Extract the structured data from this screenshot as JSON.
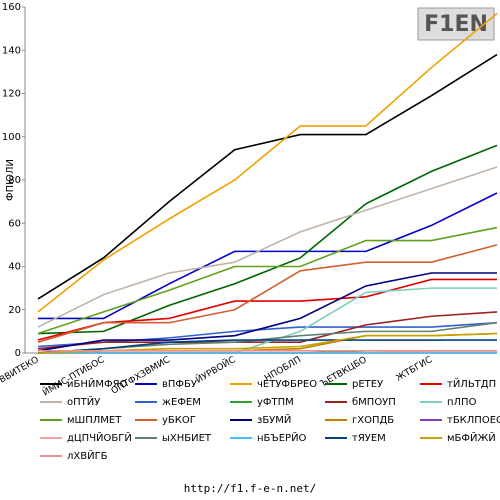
{
  "chart_data": {
    "type": "line",
    "logo": "F1EN",
    "ylabel": "ФПЮЛИ",
    "footer": "http://f1.f-e-n.net/",
    "categories": [
      "ВВИТЕКО",
      "ЙМИС-ПТИБОС",
      "ОПТФХЗВМИС",
      "ЙУРВОЙС",
      "НПОБЛП",
      "ЪЕТВКЦБО",
      "ЖТБГИС",
      null
    ],
    "ylim": [
      0,
      160
    ],
    "yticks": [
      0,
      20,
      40,
      60,
      80,
      100,
      120,
      140,
      160
    ],
    "grid": false,
    "series": [
      {
        "name": "иБНЙМФЯО",
        "color": "#000000",
        "values": [
          25,
          44,
          70,
          94,
          101,
          101,
          119,
          138
        ]
      },
      {
        "name": "вПФБУ",
        "color": "#0000cc",
        "values": [
          16,
          16,
          32,
          47,
          47,
          47,
          59,
          74
        ]
      },
      {
        "name": "чЕТУФБРЕО",
        "color": "#f0a000",
        "values": [
          19,
          43,
          62,
          80,
          105,
          105,
          132,
          157
        ]
      },
      {
        "name": "рЕТЕУ",
        "color": "#006400",
        "values": [
          9,
          10,
          22,
          32,
          44,
          69,
          84,
          96
        ]
      },
      {
        "name": "тЙЛЬТДП",
        "color": "#e00000",
        "values": [
          6,
          14,
          16,
          24,
          24,
          26,
          34,
          34
        ]
      },
      {
        "name": "оПТЙУ",
        "color": "#c0b4a8",
        "values": [
          12,
          27,
          37,
          42,
          56,
          66,
          76,
          86
        ]
      },
      {
        "name": "жЕФЕМ",
        "color": "#3060d0",
        "values": [
          3,
          5,
          7,
          10,
          12,
          12,
          12,
          14
        ]
      },
      {
        "name": "уФТПМ",
        "color": "#30a030",
        "values": [
          0,
          0,
          0,
          0,
          0,
          1,
          1,
          1
        ]
      },
      {
        "name": "бМПОУП",
        "color": "#a02020",
        "values": [
          2,
          5,
          5,
          5,
          5,
          13,
          17,
          19
        ]
      },
      {
        "name": "пЛПО",
        "color": "#80d0c0",
        "values": [
          0,
          0,
          0,
          0,
          10,
          28,
          30,
          30
        ]
      },
      {
        "name": "мШПЛМЕТ",
        "color": "#60a020",
        "values": [
          9,
          19,
          29,
          40,
          40,
          52,
          52,
          58
        ]
      },
      {
        "name": "уБКОГ",
        "color": "#d06030",
        "values": [
          5,
          14,
          14,
          20,
          38,
          42,
          42,
          50
        ]
      },
      {
        "name": "зБУМЙ",
        "color": "#000080",
        "values": [
          1,
          6,
          6,
          8,
          16,
          31,
          37,
          37
        ]
      },
      {
        "name": "гХОПДБ",
        "color": "#c08000",
        "values": [
          0,
          1,
          1,
          1,
          2,
          8,
          8,
          9
        ]
      },
      {
        "name": "тБКЛПОЕО",
        "color": "#8040c0",
        "values": [
          0,
          0,
          0,
          0,
          0,
          0,
          0,
          0
        ]
      },
      {
        "name": "дЦПЧЙОБГЙ",
        "color": "#f0a0a0",
        "values": [
          0,
          0,
          0,
          0,
          0,
          0,
          1,
          1
        ]
      },
      {
        "name": "ыХНБИЕТ",
        "color": "#608070",
        "values": [
          0,
          2,
          4,
          5,
          8,
          10,
          10,
          14
        ]
      },
      {
        "name": "нБЪЕРЙО",
        "color": "#40c0f0",
        "values": [
          0,
          0,
          0,
          0,
          0,
          0,
          0,
          0
        ]
      },
      {
        "name": "тЯУЕМ",
        "color": "#004080",
        "values": [
          0,
          2,
          5,
          6,
          6,
          6,
          6,
          6
        ]
      },
      {
        "name": "мБФЙЖЙ",
        "color": "#c8a000",
        "values": [
          0,
          1,
          2,
          2,
          3,
          8,
          8,
          9
        ]
      },
      {
        "name": "лХВЙГБ",
        "color": "#f09090",
        "values": [
          1,
          1,
          1,
          1,
          1,
          1,
          1,
          1
        ]
      }
    ]
  }
}
